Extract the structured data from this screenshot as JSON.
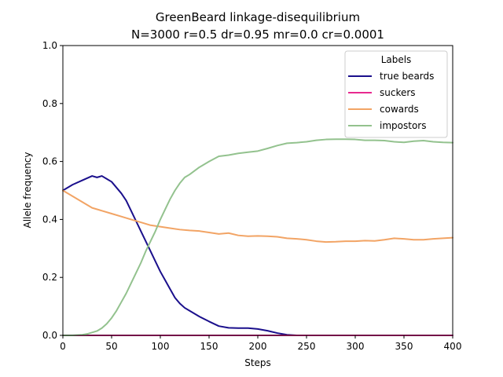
{
  "chart_data": {
    "type": "line",
    "title": "GreenBeard linkage-disequilibrium",
    "subtitle": "N=3000 r=0.5 dr=0.95 mr=0.0 cr=0.0001",
    "xlabel": "Steps",
    "ylabel": "Allele frequency",
    "xlim": [
      0,
      400
    ],
    "ylim": [
      0,
      1.0
    ],
    "xticks": [
      0,
      50,
      100,
      150,
      200,
      250,
      300,
      350,
      400
    ],
    "yticks": [
      0.0,
      0.2,
      0.4,
      0.6,
      0.8,
      1.0
    ],
    "xtick_labels": [
      "0",
      "50",
      "100",
      "150",
      "200",
      "250",
      "300",
      "350",
      "400"
    ],
    "ytick_labels": [
      "0.0",
      "0.2",
      "0.4",
      "0.6",
      "0.8",
      "1.0"
    ],
    "grid": false,
    "legend": {
      "title": "Labels",
      "placement": "top-right"
    },
    "series": [
      {
        "name": "true beards",
        "color": "#1a0f8c",
        "x": [
          0,
          10,
          20,
          30,
          35,
          40,
          45,
          50,
          55,
          60,
          65,
          70,
          75,
          80,
          85,
          90,
          95,
          100,
          105,
          110,
          115,
          120,
          125,
          130,
          140,
          150,
          160,
          170,
          180,
          190,
          200,
          210,
          220,
          230,
          240,
          250,
          300,
          350,
          400
        ],
        "y": [
          0.5,
          0.52,
          0.535,
          0.55,
          0.545,
          0.55,
          0.54,
          0.53,
          0.51,
          0.49,
          0.465,
          0.43,
          0.395,
          0.36,
          0.325,
          0.29,
          0.255,
          0.22,
          0.19,
          0.16,
          0.13,
          0.11,
          0.095,
          0.085,
          0.065,
          0.048,
          0.032,
          0.026,
          0.025,
          0.025,
          0.022,
          0.016,
          0.008,
          0.002,
          0.0,
          0.0,
          0.0,
          0.0,
          0.0
        ]
      },
      {
        "name": "suckers",
        "color": "#e8298f",
        "x": [
          0,
          50,
          100,
          150,
          200,
          250,
          300,
          350,
          400
        ],
        "y": [
          0.0,
          0.0,
          0.0,
          0.0,
          0.0,
          0.0,
          0.0,
          0.0,
          0.0
        ]
      },
      {
        "name": "cowards",
        "color": "#f2a465",
        "x": [
          0,
          10,
          20,
          30,
          40,
          50,
          60,
          70,
          80,
          90,
          100,
          110,
          120,
          130,
          140,
          150,
          160,
          170,
          180,
          190,
          200,
          210,
          220,
          230,
          240,
          250,
          260,
          270,
          280,
          290,
          300,
          310,
          320,
          330,
          340,
          350,
          360,
          370,
          380,
          390,
          400
        ],
        "y": [
          0.5,
          0.48,
          0.46,
          0.44,
          0.43,
          0.42,
          0.41,
          0.4,
          0.39,
          0.38,
          0.375,
          0.37,
          0.365,
          0.362,
          0.36,
          0.355,
          0.35,
          0.353,
          0.345,
          0.342,
          0.343,
          0.342,
          0.34,
          0.335,
          0.333,
          0.33,
          0.325,
          0.322,
          0.323,
          0.325,
          0.325,
          0.327,
          0.326,
          0.33,
          0.335,
          0.333,
          0.33,
          0.33,
          0.333,
          0.335,
          0.337
        ]
      },
      {
        "name": "impostors",
        "color": "#93c28e",
        "x": [
          0,
          10,
          20,
          25,
          30,
          35,
          40,
          45,
          50,
          55,
          60,
          65,
          70,
          75,
          80,
          85,
          90,
          95,
          100,
          105,
          110,
          115,
          120,
          125,
          130,
          140,
          150,
          160,
          170,
          180,
          190,
          200,
          210,
          220,
          230,
          240,
          250,
          260,
          270,
          280,
          290,
          300,
          310,
          320,
          330,
          340,
          350,
          360,
          370,
          380,
          390,
          400
        ],
        "y": [
          0.0,
          0.0,
          0.002,
          0.005,
          0.01,
          0.015,
          0.025,
          0.04,
          0.06,
          0.085,
          0.115,
          0.145,
          0.18,
          0.215,
          0.25,
          0.29,
          0.325,
          0.36,
          0.4,
          0.435,
          0.47,
          0.5,
          0.525,
          0.545,
          0.555,
          0.58,
          0.6,
          0.618,
          0.622,
          0.628,
          0.632,
          0.636,
          0.645,
          0.655,
          0.663,
          0.665,
          0.668,
          0.673,
          0.676,
          0.677,
          0.677,
          0.676,
          0.673,
          0.673,
          0.672,
          0.668,
          0.666,
          0.67,
          0.672,
          0.668,
          0.666,
          0.665
        ]
      }
    ]
  }
}
